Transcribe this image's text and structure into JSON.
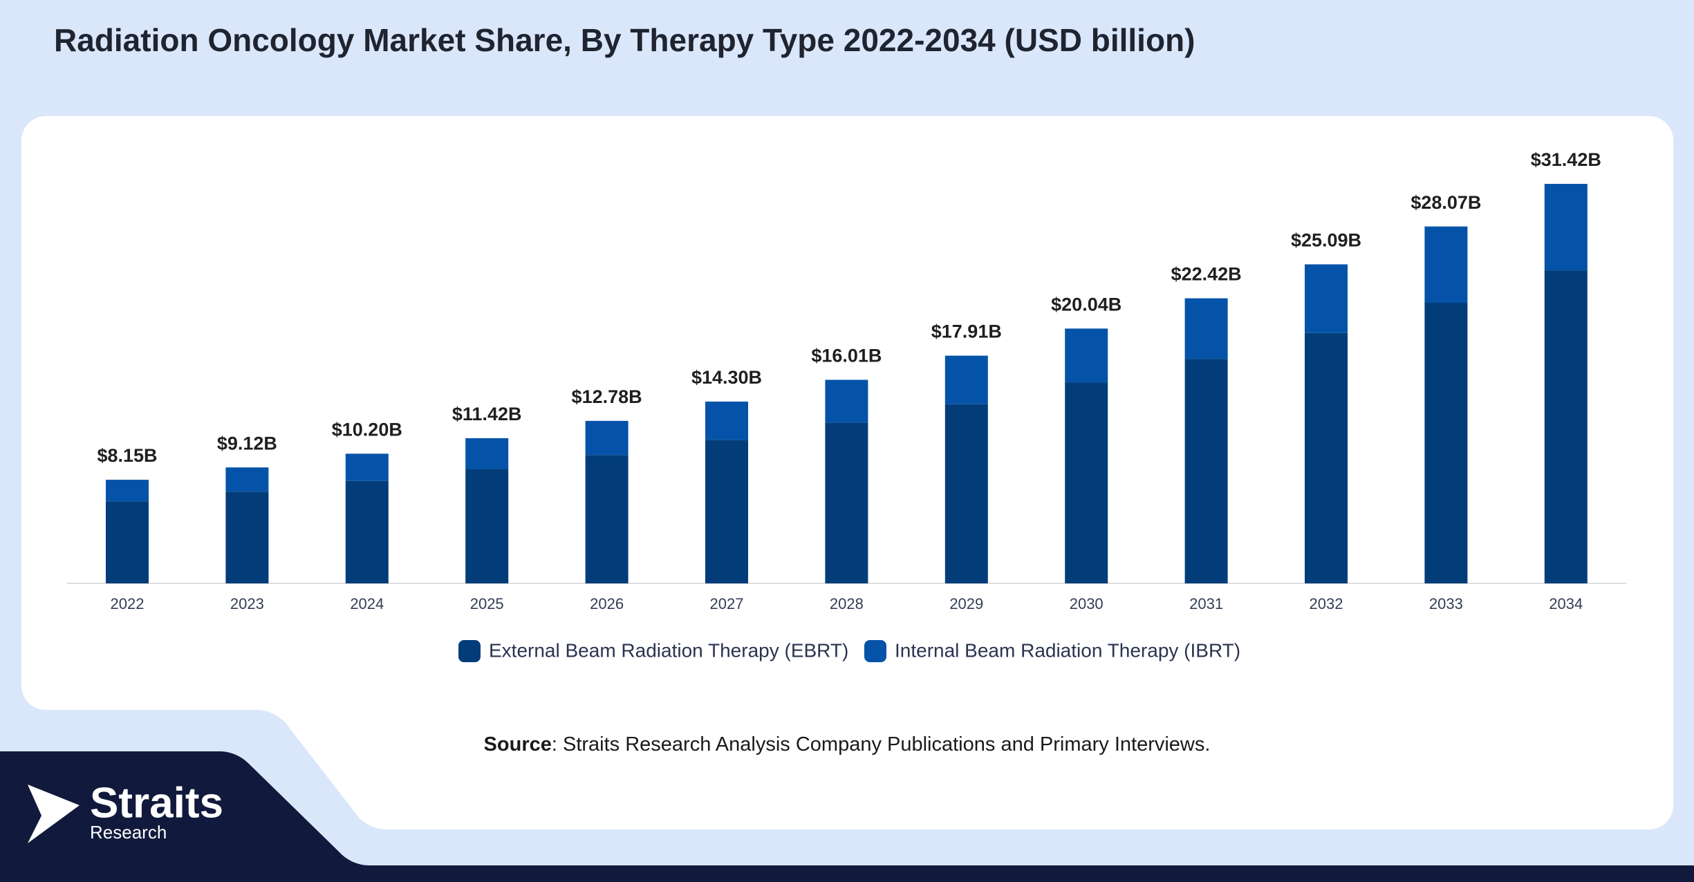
{
  "chart_data": {
    "type": "stacked_bar",
    "title": "Radiation Oncology Market Share, By Therapy Type 2022-2034 (USD billion)",
    "categories": [
      "2022",
      "2023",
      "2024",
      "2025",
      "2026",
      "2027",
      "2028",
      "2029",
      "2030",
      "2031",
      "2032",
      "2033",
      "2034"
    ],
    "series": [
      {
        "name": "External Beam Radiation Therapy (EBRT)",
        "color": "#023d7a",
        "values": [
          6.45,
          7.22,
          8.06,
          9.0,
          10.1,
          11.29,
          12.65,
          14.09,
          15.79,
          17.66,
          19.69,
          22.07,
          24.62
        ]
      },
      {
        "name": "Internal Beam Radiation Therapy (IBRT)",
        "color": "#0453a8",
        "values": [
          1.7,
          1.9,
          2.14,
          2.42,
          2.68,
          3.01,
          3.36,
          3.82,
          4.25,
          4.76,
          5.4,
          6.0,
          6.8
        ]
      }
    ],
    "totals": {
      "values": [
        8.15,
        9.12,
        10.2,
        11.42,
        12.78,
        14.3,
        16.01,
        17.91,
        20.04,
        22.42,
        25.09,
        28.07,
        31.42
      ],
      "value_labels": [
        "$8.15B",
        "$9.12B",
        "$10.20B",
        "$11.42B",
        "$12.78B",
        "$14.30B",
        "$16.01B",
        "$17.91B",
        "$20.04B",
        "$22.42B",
        "$25.09B",
        "$28.07B",
        "$31.42B"
      ]
    }
  },
  "source": {
    "label": "Source",
    "text": ": Straits Research Analysis Company Publications and Primary Interviews."
  },
  "logo": {
    "name": "Straits",
    "sub": "Research"
  }
}
